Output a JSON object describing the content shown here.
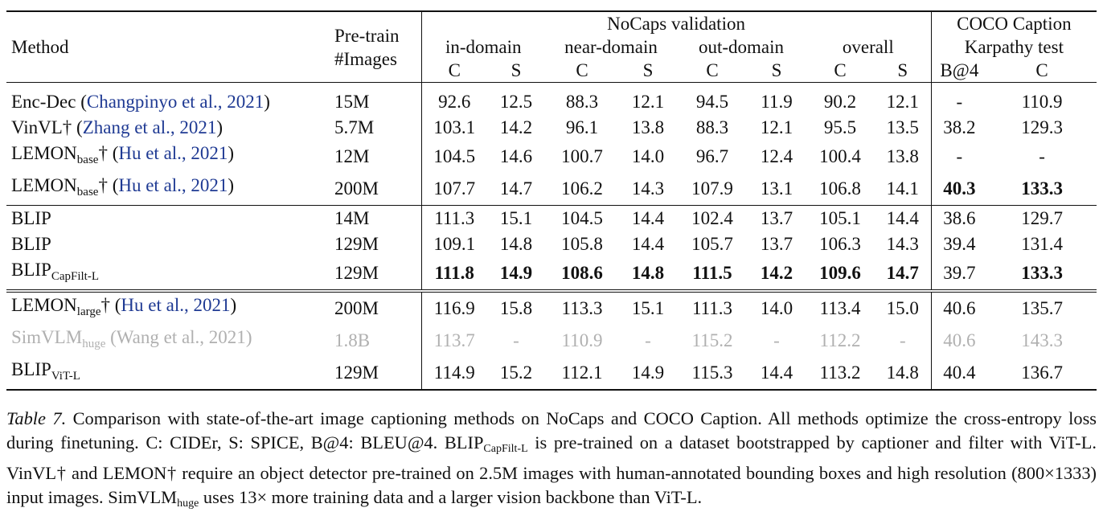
{
  "header": {
    "method": "Method",
    "pretrain_line1": "Pre-train",
    "pretrain_line2": "#Images",
    "nocaps": "NoCaps validation",
    "coco_line1": "COCO Caption",
    "coco_line2": "Karpathy test",
    "in_domain": "in-domain",
    "near_domain": "near-domain",
    "out_domain": "out-domain",
    "overall": "overall",
    "c": "C",
    "s": "S",
    "b4": "B@4"
  },
  "rows": [
    {
      "name": "Enc-Dec",
      "sub": "",
      "mark": "",
      "cite": "Changpinyo et al., 2021",
      "pretrain": "15M",
      "vals": [
        "92.6",
        "12.5",
        "88.3",
        "12.1",
        "94.5",
        "11.9",
        "90.2",
        "12.1",
        "-",
        "110.9"
      ]
    },
    {
      "name": "VinVL",
      "sub": "",
      "mark": "†",
      "cite": "Zhang et al., 2021",
      "pretrain": "5.7M",
      "vals": [
        "103.1",
        "14.2",
        "96.1",
        "13.8",
        "88.3",
        "12.1",
        "95.5",
        "13.5",
        "38.2",
        "129.3"
      ]
    },
    {
      "name": "LEMON",
      "sub": "base",
      "mark": "†",
      "cite": "Hu et al., 2021",
      "pretrain": "12M",
      "vals": [
        "104.5",
        "14.6",
        "100.7",
        "14.0",
        "96.7",
        "12.4",
        "100.4",
        "13.8",
        "-",
        "-"
      ]
    },
    {
      "name": "LEMON",
      "sub": "base",
      "mark": "†",
      "cite": "Hu et al., 2021",
      "pretrain": "200M",
      "vals": [
        "107.7",
        "14.7",
        "106.2",
        "14.3",
        "107.9",
        "13.1",
        "106.8",
        "14.1",
        "40.3",
        "133.3"
      ]
    },
    {
      "name": "BLIP",
      "sub": "",
      "mark": "",
      "cite": "",
      "pretrain": "14M",
      "vals": [
        "111.3",
        "15.1",
        "104.5",
        "14.4",
        "102.4",
        "13.7",
        "105.1",
        "14.4",
        "38.6",
        "129.7"
      ]
    },
    {
      "name": "BLIP",
      "sub": "",
      "mark": "",
      "cite": "",
      "pretrain": "129M",
      "vals": [
        "109.1",
        "14.8",
        "105.8",
        "14.4",
        "105.7",
        "13.7",
        "106.3",
        "14.3",
        "39.4",
        "131.4"
      ]
    },
    {
      "name": "BLIP",
      "sub": "CapFilt-L",
      "mark": "",
      "cite": "",
      "pretrain": "129M",
      "vals": [
        "111.8",
        "14.9",
        "108.6",
        "14.8",
        "111.5",
        "14.2",
        "109.6",
        "14.7",
        "39.7",
        "133.3"
      ]
    },
    {
      "name": "LEMON",
      "sub": "large",
      "mark": "†",
      "cite": "Hu et al., 2021",
      "pretrain": "200M",
      "vals": [
        "116.9",
        "15.8",
        "113.3",
        "15.1",
        "111.3",
        "14.0",
        "113.4",
        "15.0",
        "40.6",
        "135.7"
      ]
    },
    {
      "name": "SimVLM",
      "sub": "huge",
      "mark": "",
      "cite": "Wang et al., 2021",
      "pretrain": "1.8B",
      "vals": [
        "113.7",
        "-",
        "110.9",
        "-",
        "115.2",
        "-",
        "112.2",
        "-",
        "40.6",
        "143.3"
      ]
    },
    {
      "name": "BLIP",
      "sub": "ViT-L",
      "mark": "",
      "cite": "",
      "pretrain": "129M",
      "vals": [
        "114.9",
        "15.2",
        "112.1",
        "14.9",
        "115.3",
        "14.4",
        "113.2",
        "14.8",
        "40.4",
        "136.7"
      ]
    }
  ],
  "caption": {
    "label": "Table 7.",
    "p1": " Comparison with state-of-the-art image captioning methods on NoCaps and COCO Caption. All methods optimize the cross-entropy loss during finetuning. C: CIDEr, S: SPICE, B@4: BLEU@4. BLIP",
    "sub1": "CapFilt-L",
    "p2": " is pre-trained on a dataset bootstrapped by captioner and filter with ViT-L. VinVL† and LEMON† require an object detector pre-trained on 2.5M images with human-annotated bounding boxes and high resolution (800×1333) input images. SimVLM",
    "sub2": "huge",
    "p3": " uses 13× more training data and a larger vision backbone than ViT-L."
  }
}
